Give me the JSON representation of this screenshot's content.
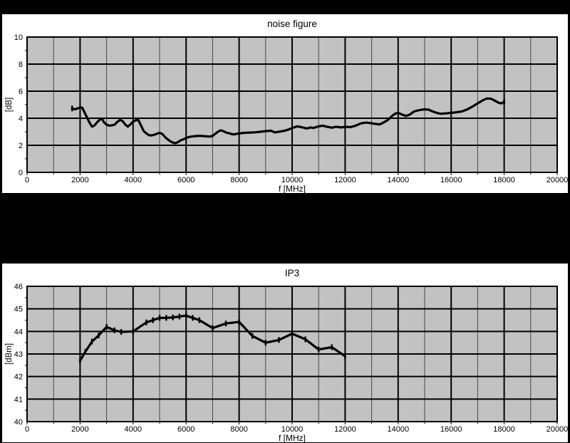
{
  "page": {
    "background_color": "#000000",
    "panel_background_color": "#ffffff",
    "plot_background_color": "#c2c2c2",
    "line_color": "#000000"
  },
  "chart_data": [
    {
      "type": "line",
      "title": "noise figure",
      "xlabel": "f [MHz]",
      "ylabel": "[dB]",
      "xlim": [
        0,
        20000
      ],
      "ylim": [
        0,
        10
      ],
      "x_major_step": 2000,
      "x_minor_step": 1000,
      "y_major_step": 2,
      "y_minor_step": 1,
      "x_tick_labels": [
        "0",
        "2000",
        "4000",
        "6000",
        "8000",
        "10000",
        "12000",
        "14000",
        "16000",
        "18000",
        "20000"
      ],
      "y_tick_labels": [
        "0",
        "2",
        "4",
        "6",
        "8",
        "10"
      ],
      "grid": "major x+y gridlines, minor x gridlines, minor ticks on axes",
      "legend": "none",
      "series": [
        {
          "name": "noise-figure",
          "marker": "end-dash",
          "points": [
            [
              1700,
              4.72
            ],
            [
              1800,
              4.66
            ],
            [
              1900,
              4.72
            ],
            [
              2000,
              4.8
            ],
            [
              2080,
              4.78
            ],
            [
              2150,
              4.5
            ],
            [
              2250,
              4.1
            ],
            [
              2350,
              3.7
            ],
            [
              2450,
              3.38
            ],
            [
              2550,
              3.48
            ],
            [
              2650,
              3.72
            ],
            [
              2750,
              3.9
            ],
            [
              2830,
              3.95
            ],
            [
              2900,
              3.7
            ],
            [
              3000,
              3.52
            ],
            [
              3100,
              3.45
            ],
            [
              3200,
              3.48
            ],
            [
              3300,
              3.52
            ],
            [
              3400,
              3.72
            ],
            [
              3500,
              3.87
            ],
            [
              3600,
              3.8
            ],
            [
              3700,
              3.55
            ],
            [
              3800,
              3.38
            ],
            [
              3900,
              3.55
            ],
            [
              4000,
              3.75
            ],
            [
              4100,
              3.85
            ],
            [
              4200,
              3.87
            ],
            [
              4300,
              3.45
            ],
            [
              4400,
              3.05
            ],
            [
              4500,
              2.88
            ],
            [
              4600,
              2.75
            ],
            [
              4700,
              2.73
            ],
            [
              4800,
              2.78
            ],
            [
              4900,
              2.86
            ],
            [
              5000,
              2.92
            ],
            [
              5100,
              2.84
            ],
            [
              5200,
              2.62
            ],
            [
              5300,
              2.44
            ],
            [
              5400,
              2.3
            ],
            [
              5500,
              2.2
            ],
            [
              5600,
              2.15
            ],
            [
              5700,
              2.24
            ],
            [
              5800,
              2.38
            ],
            [
              5900,
              2.44
            ],
            [
              6000,
              2.55
            ],
            [
              6100,
              2.6
            ],
            [
              6200,
              2.65
            ],
            [
              6350,
              2.68
            ],
            [
              6500,
              2.7
            ],
            [
              6650,
              2.68
            ],
            [
              6800,
              2.66
            ],
            [
              6900,
              2.64
            ],
            [
              7000,
              2.7
            ],
            [
              7100,
              2.85
            ],
            [
              7200,
              3.0
            ],
            [
              7300,
              3.1
            ],
            [
              7400,
              3.05
            ],
            [
              7500,
              2.95
            ],
            [
              7600,
              2.9
            ],
            [
              7700,
              2.84
            ],
            [
              7800,
              2.8
            ],
            [
              7900,
              2.85
            ],
            [
              8000,
              2.88
            ],
            [
              8200,
              2.92
            ],
            [
              8400,
              2.94
            ],
            [
              8600,
              2.96
            ],
            [
              8800,
              3.0
            ],
            [
              9000,
              3.05
            ],
            [
              9200,
              3.08
            ],
            [
              9350,
              2.95
            ],
            [
              9500,
              3.0
            ],
            [
              9700,
              3.07
            ],
            [
              9850,
              3.15
            ],
            [
              10000,
              3.28
            ],
            [
              10200,
              3.4
            ],
            [
              10350,
              3.34
            ],
            [
              10550,
              3.24
            ],
            [
              10700,
              3.32
            ],
            [
              10800,
              3.28
            ],
            [
              11000,
              3.4
            ],
            [
              11150,
              3.45
            ],
            [
              11300,
              3.38
            ],
            [
              11500,
              3.3
            ],
            [
              11650,
              3.37
            ],
            [
              11850,
              3.32
            ],
            [
              12000,
              3.37
            ],
            [
              12200,
              3.34
            ],
            [
              12400,
              3.45
            ],
            [
              12600,
              3.62
            ],
            [
              12800,
              3.68
            ],
            [
              12950,
              3.64
            ],
            [
              13150,
              3.58
            ],
            [
              13300,
              3.55
            ],
            [
              13400,
              3.63
            ],
            [
              13600,
              3.85
            ],
            [
              13800,
              4.22
            ],
            [
              13900,
              4.35
            ],
            [
              14000,
              4.4
            ],
            [
              14150,
              4.27
            ],
            [
              14300,
              4.17
            ],
            [
              14450,
              4.28
            ],
            [
              14600,
              4.5
            ],
            [
              14800,
              4.6
            ],
            [
              15000,
              4.66
            ],
            [
              15150,
              4.63
            ],
            [
              15300,
              4.5
            ],
            [
              15450,
              4.4
            ],
            [
              15600,
              4.33
            ],
            [
              15800,
              4.36
            ],
            [
              16000,
              4.4
            ],
            [
              16200,
              4.44
            ],
            [
              16400,
              4.5
            ],
            [
              16600,
              4.64
            ],
            [
              16800,
              4.86
            ],
            [
              17000,
              5.1
            ],
            [
              17200,
              5.33
            ],
            [
              17350,
              5.46
            ],
            [
              17500,
              5.44
            ],
            [
              17650,
              5.3
            ],
            [
              17800,
              5.13
            ],
            [
              17900,
              5.1
            ],
            [
              18000,
              5.22
            ]
          ]
        }
      ]
    },
    {
      "type": "line",
      "title": "IP3",
      "xlabel": "f [MHz]",
      "ylabel": "[dBm]",
      "xlim": [
        0,
        20000
      ],
      "ylim": [
        40,
        46
      ],
      "x_major_step": 2000,
      "x_minor_step": 1000,
      "y_major_step": 1,
      "y_minor_step": 0.5,
      "x_tick_labels": [
        "0",
        "2000",
        "4000",
        "6000",
        "8000",
        "10000",
        "12000",
        "14000",
        "16000",
        "18000",
        "20000"
      ],
      "y_tick_labels": [
        "40",
        "41",
        "42",
        "43",
        "44",
        "45",
        "46"
      ],
      "grid": "major x+y gridlines, minor x gridlines, minor ticks on axes",
      "legend": "none",
      "series": [
        {
          "name": "ip3",
          "marker": "dash",
          "points": [
            [
              2000,
              42.7
            ],
            [
              2200,
              43.1
            ],
            [
              2450,
              43.55
            ],
            [
              2700,
              43.82
            ],
            [
              3000,
              44.2
            ],
            [
              3300,
              44.05
            ],
            [
              3550,
              43.98
            ],
            [
              4000,
              44.0
            ],
            [
              4500,
              44.4
            ],
            [
              4750,
              44.5
            ],
            [
              5000,
              44.6
            ],
            [
              5250,
              44.6
            ],
            [
              5500,
              44.62
            ],
            [
              5750,
              44.66
            ],
            [
              6000,
              44.7
            ],
            [
              6250,
              44.6
            ],
            [
              6500,
              44.5
            ],
            [
              7000,
              44.15
            ],
            [
              7500,
              44.35
            ],
            [
              8000,
              44.42
            ],
            [
              8500,
              43.8
            ],
            [
              9000,
              43.5
            ],
            [
              9500,
              43.62
            ],
            [
              10000,
              43.9
            ],
            [
              10500,
              43.65
            ],
            [
              11000,
              43.2
            ],
            [
              11500,
              43.3
            ],
            [
              12000,
              42.9
            ]
          ]
        }
      ]
    }
  ]
}
